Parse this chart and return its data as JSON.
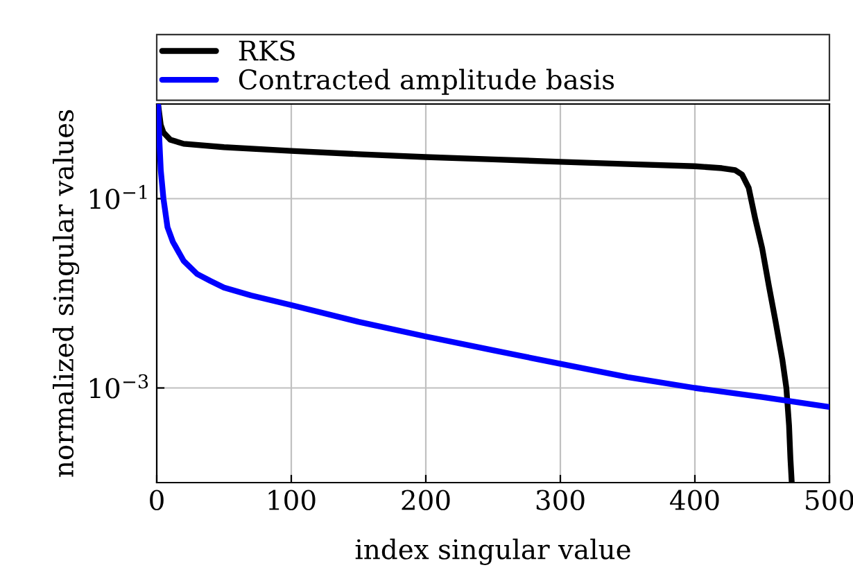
{
  "chart_data": {
    "type": "line",
    "xlabel": "index singular value",
    "ylabel": "normalized singular values",
    "log": "y",
    "grid": true,
    "legend": "top",
    "line_style": "solid",
    "marker": "none",
    "xlim": [
      0,
      500
    ],
    "xticks": [
      0,
      100,
      200,
      300,
      400,
      500
    ],
    "ylim": [
      0.0001,
      1
    ],
    "yticks": [
      {
        "value": 0.1,
        "label": "10$^{−1}$"
      },
      {
        "value": 0.001,
        "label": "10$^{−3}$"
      }
    ],
    "series": [
      {
        "name": "RKS",
        "color": "#000000",
        "x": [
          1,
          3,
          5,
          10,
          20,
          50,
          100,
          150,
          200,
          250,
          300,
          350,
          400,
          420,
          430,
          435,
          440,
          445,
          450,
          455,
          460,
          465,
          468,
          470,
          471,
          472
        ],
        "values": [
          1,
          0.6,
          0.5,
          0.42,
          0.38,
          0.35,
          0.32,
          0.295,
          0.275,
          0.26,
          0.245,
          0.232,
          0.22,
          0.21,
          0.2,
          0.18,
          0.13,
          0.06,
          0.03,
          0.012,
          0.005,
          0.002,
          0.001,
          0.0004,
          0.00018,
          0.0001
        ]
      },
      {
        "name": "Contracted amplitude basis",
        "color": "#0000ff",
        "x": [
          1,
          2,
          3,
          5,
          8,
          12,
          20,
          30,
          40,
          50,
          70,
          100,
          150,
          200,
          250,
          300,
          350,
          400,
          450,
          500
        ],
        "values": [
          1,
          0.4,
          0.2,
          0.1,
          0.05,
          0.035,
          0.022,
          0.016,
          0.0135,
          0.0115,
          0.0095,
          0.0075,
          0.005,
          0.0035,
          0.0025,
          0.0018,
          0.0013,
          0.001,
          0.0008,
          0.00063
        ]
      }
    ]
  }
}
